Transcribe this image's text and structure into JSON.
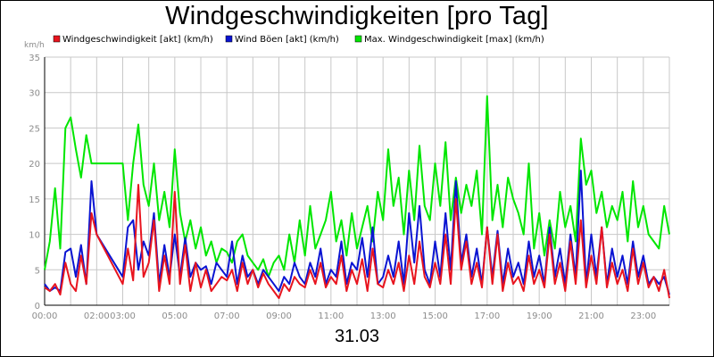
{
  "chart_data": {
    "type": "line",
    "title": "Windgeschwindigkeiten [pro Tag]",
    "xlabel": "31.03",
    "ylabel": "km/h",
    "ylim": [
      0,
      35
    ],
    "yticks": [
      0,
      5,
      10,
      15,
      20,
      25,
      30,
      35
    ],
    "xlim": [
      0,
      24
    ],
    "xticks": [
      {
        "value": 0,
        "label": "00:00"
      },
      {
        "value": 2,
        "label": "02:00"
      },
      {
        "value": 3,
        "label": "03:00"
      },
      {
        "value": 5,
        "label": "05:00"
      },
      {
        "value": 7,
        "label": "07:00"
      },
      {
        "value": 9,
        "label": "09:00"
      },
      {
        "value": 11,
        "label": "11:00"
      },
      {
        "value": 13,
        "label": "13:00"
      },
      {
        "value": 15,
        "label": "15:00"
      },
      {
        "value": 17,
        "label": "17:00"
      },
      {
        "value": 19,
        "label": "19:00"
      },
      {
        "value": 21,
        "label": "21:00"
      },
      {
        "value": 23,
        "label": "23:00"
      }
    ],
    "grid": true,
    "legend_position": "top",
    "series": [
      {
        "name": "Windgeschwindigkeit [akt] (km/h)",
        "color": "#e8141e",
        "x": [
          0.0,
          0.2,
          0.4,
          0.6,
          0.8,
          1.0,
          1.2,
          1.4,
          1.6,
          1.8,
          2.0,
          3.0,
          3.2,
          3.4,
          3.6,
          3.8,
          4.0,
          4.2,
          4.4,
          4.6,
          4.8,
          5.0,
          5.2,
          5.4,
          5.6,
          5.8,
          6.0,
          6.2,
          6.4,
          6.6,
          6.8,
          7.0,
          7.2,
          7.4,
          7.6,
          7.8,
          8.0,
          8.2,
          8.4,
          8.6,
          8.8,
          9.0,
          9.2,
          9.4,
          9.6,
          9.8,
          10.0,
          10.2,
          10.4,
          10.6,
          10.8,
          11.0,
          11.2,
          11.4,
          11.6,
          11.8,
          12.0,
          12.2,
          12.4,
          12.6,
          12.8,
          13.0,
          13.2,
          13.4,
          13.6,
          13.8,
          14.0,
          14.2,
          14.4,
          14.6,
          14.8,
          15.0,
          15.2,
          15.4,
          15.6,
          15.8,
          16.0,
          16.2,
          16.4,
          16.6,
          16.8,
          17.0,
          17.2,
          17.4,
          17.6,
          17.8,
          18.0,
          18.2,
          18.4,
          18.6,
          18.8,
          19.0,
          19.2,
          19.4,
          19.6,
          19.8,
          20.0,
          20.2,
          20.4,
          20.6,
          20.8,
          21.0,
          21.2,
          21.4,
          21.6,
          21.8,
          22.0,
          22.2,
          22.4,
          22.6,
          22.8,
          23.0,
          23.2,
          23.4,
          23.6,
          23.8,
          24.0
        ],
        "y": [
          2.5,
          2.0,
          3.0,
          1.5,
          6.0,
          3.0,
          2.0,
          7.0,
          3.0,
          13.0,
          10.0,
          3.0,
          8.0,
          3.5,
          17.0,
          4.0,
          6.0,
          12.0,
          2.0,
          7.0,
          3.0,
          16.0,
          3.0,
          8.5,
          2.0,
          6.0,
          2.5,
          5.0,
          2.0,
          3.0,
          4.0,
          3.5,
          5.0,
          2.0,
          6.0,
          3.0,
          5.0,
          2.5,
          4.5,
          3.0,
          2.0,
          1.0,
          3.0,
          2.0,
          4.0,
          3.0,
          2.5,
          5.0,
          3.0,
          6.0,
          2.5,
          4.0,
          3.0,
          7.0,
          2.0,
          5.0,
          3.0,
          6.5,
          2.0,
          8.0,
          3.0,
          2.5,
          5.0,
          3.0,
          6.0,
          2.0,
          7.0,
          3.0,
          9.0,
          4.0,
          2.5,
          6.0,
          3.0,
          10.0,
          3.0,
          15.0,
          5.0,
          9.0,
          3.0,
          6.0,
          2.5,
          11.0,
          3.0,
          10.0,
          2.0,
          6.0,
          3.0,
          4.0,
          2.0,
          7.0,
          3.0,
          5.0,
          2.5,
          10.0,
          3.0,
          6.0,
          2.0,
          9.0,
          3.0,
          12.0,
          2.5,
          7.0,
          3.0,
          11.0,
          2.5,
          6.0,
          3.0,
          5.0,
          2.0,
          8.0,
          3.0,
          6.0,
          2.5,
          4.0,
          2.0,
          5.0,
          1.0
        ]
      },
      {
        "name": "Wind Böen [akt] (km/h)",
        "color": "#0a14d2",
        "x": [
          0.0,
          0.2,
          0.4,
          0.6,
          0.8,
          1.0,
          1.2,
          1.4,
          1.6,
          1.8,
          2.0,
          3.0,
          3.2,
          3.4,
          3.6,
          3.8,
          4.0,
          4.2,
          4.4,
          4.6,
          4.8,
          5.0,
          5.2,
          5.4,
          5.6,
          5.8,
          6.0,
          6.2,
          6.4,
          6.6,
          6.8,
          7.0,
          7.2,
          7.4,
          7.6,
          7.8,
          8.0,
          8.2,
          8.4,
          8.6,
          8.8,
          9.0,
          9.2,
          9.4,
          9.6,
          9.8,
          10.0,
          10.2,
          10.4,
          10.6,
          10.8,
          11.0,
          11.2,
          11.4,
          11.6,
          11.8,
          12.0,
          12.2,
          12.4,
          12.6,
          12.8,
          13.0,
          13.2,
          13.4,
          13.6,
          13.8,
          14.0,
          14.2,
          14.4,
          14.6,
          14.8,
          15.0,
          15.2,
          15.4,
          15.6,
          15.8,
          16.0,
          16.2,
          16.4,
          16.6,
          16.8,
          17.0,
          17.2,
          17.4,
          17.6,
          17.8,
          18.0,
          18.2,
          18.4,
          18.6,
          18.8,
          19.0,
          19.2,
          19.4,
          19.6,
          19.8,
          20.0,
          20.2,
          20.4,
          20.6,
          20.8,
          21.0,
          21.2,
          21.4,
          21.6,
          21.8,
          22.0,
          22.2,
          22.4,
          22.6,
          22.8,
          23.0,
          23.2,
          23.4,
          23.6,
          23.8,
          24.0
        ],
        "y": [
          3.0,
          2.0,
          2.5,
          2.0,
          7.5,
          8.0,
          4.0,
          8.5,
          3.0,
          17.5,
          10.0,
          4.0,
          11.0,
          12.0,
          5.0,
          9.0,
          7.0,
          13.0,
          3.0,
          8.5,
          4.0,
          10.0,
          4.0,
          9.5,
          4.0,
          6.0,
          5.0,
          5.5,
          3.0,
          6.0,
          5.0,
          4.0,
          9.0,
          3.0,
          7.0,
          4.0,
          5.0,
          3.0,
          5.0,
          4.0,
          3.0,
          2.0,
          4.0,
          3.0,
          6.0,
          4.0,
          3.0,
          6.0,
          4.0,
          8.0,
          3.0,
          5.0,
          4.0,
          9.0,
          3.0,
          6.0,
          5.0,
          9.5,
          4.0,
          11.0,
          3.0,
          4.0,
          7.0,
          4.0,
          9.0,
          3.0,
          13.0,
          6.0,
          14.0,
          5.0,
          3.0,
          9.0,
          4.0,
          13.0,
          5.0,
          17.5,
          6.0,
          10.0,
          4.0,
          8.0,
          3.0,
          11.0,
          4.0,
          10.5,
          3.0,
          8.0,
          4.0,
          6.0,
          3.0,
          9.0,
          4.0,
          7.0,
          3.0,
          11.0,
          4.0,
          8.0,
          3.0,
          10.0,
          4.0,
          19.0,
          3.0,
          10.0,
          4.0,
          11.0,
          3.0,
          8.0,
          4.0,
          7.0,
          3.0,
          9.0,
          4.0,
          7.0,
          3.0,
          4.0,
          3.0,
          4.0,
          1.5
        ]
      },
      {
        "name": "Max. Windgeschwindigkeit [max] (km/h)",
        "color": "#00e600",
        "x": [
          0.0,
          0.2,
          0.4,
          0.6,
          0.8,
          1.0,
          1.2,
          1.4,
          1.6,
          1.8,
          2.0,
          3.0,
          3.2,
          3.4,
          3.6,
          3.8,
          4.0,
          4.2,
          4.4,
          4.6,
          4.8,
          5.0,
          5.2,
          5.4,
          5.6,
          5.8,
          6.0,
          6.2,
          6.4,
          6.6,
          6.8,
          7.0,
          7.2,
          7.4,
          7.6,
          7.8,
          8.0,
          8.2,
          8.4,
          8.6,
          8.8,
          9.0,
          9.2,
          9.4,
          9.6,
          9.8,
          10.0,
          10.2,
          10.4,
          10.6,
          10.8,
          11.0,
          11.2,
          11.4,
          11.6,
          11.8,
          12.0,
          12.2,
          12.4,
          12.6,
          12.8,
          13.0,
          13.2,
          13.4,
          13.6,
          13.8,
          14.0,
          14.2,
          14.4,
          14.6,
          14.8,
          15.0,
          15.2,
          15.4,
          15.6,
          15.8,
          16.0,
          16.2,
          16.4,
          16.6,
          16.8,
          17.0,
          17.2,
          17.4,
          17.6,
          17.8,
          18.0,
          18.2,
          18.4,
          18.6,
          18.8,
          19.0,
          19.2,
          19.4,
          19.6,
          19.8,
          20.0,
          20.2,
          20.4,
          20.6,
          20.8,
          21.0,
          21.2,
          21.4,
          21.6,
          21.8,
          22.0,
          22.2,
          22.4,
          22.6,
          22.8,
          23.0,
          23.2,
          23.4,
          23.6,
          23.8,
          24.0
        ],
        "y": [
          5.0,
          9.0,
          16.5,
          8.0,
          25.0,
          26.5,
          22.0,
          18.0,
          24.0,
          20.0,
          20.0,
          20.0,
          12.0,
          20.0,
          25.5,
          17.0,
          14.0,
          20.0,
          12.0,
          16.0,
          11.0,
          22.0,
          13.0,
          9.0,
          12.0,
          8.0,
          11.0,
          7.0,
          9.0,
          6.0,
          8.0,
          7.5,
          6.0,
          9.0,
          10.0,
          7.0,
          6.0,
          5.0,
          6.5,
          4.0,
          6.0,
          7.0,
          5.0,
          10.0,
          6.0,
          12.0,
          7.0,
          14.0,
          8.0,
          10.0,
          12.0,
          16.0,
          9.0,
          12.0,
          7.0,
          13.0,
          8.0,
          11.0,
          14.0,
          9.0,
          16.0,
          12.0,
          22.0,
          14.0,
          18.0,
          10.0,
          19.0,
          12.0,
          22.5,
          14.0,
          12.0,
          20.0,
          14.0,
          23.0,
          12.0,
          18.0,
          13.0,
          17.0,
          14.0,
          19.0,
          10.0,
          29.5,
          12.0,
          17.0,
          11.0,
          18.0,
          15.0,
          13.0,
          10.0,
          20.0,
          8.0,
          13.0,
          7.0,
          12.0,
          8.0,
          16.0,
          11.0,
          14.0,
          9.0,
          23.5,
          17.0,
          19.0,
          13.0,
          16.0,
          11.0,
          14.0,
          12.0,
          16.0,
          9.0,
          17.5,
          11.0,
          14.0,
          10.0,
          9.0,
          8.0,
          14.0,
          10.0
        ]
      }
    ]
  }
}
